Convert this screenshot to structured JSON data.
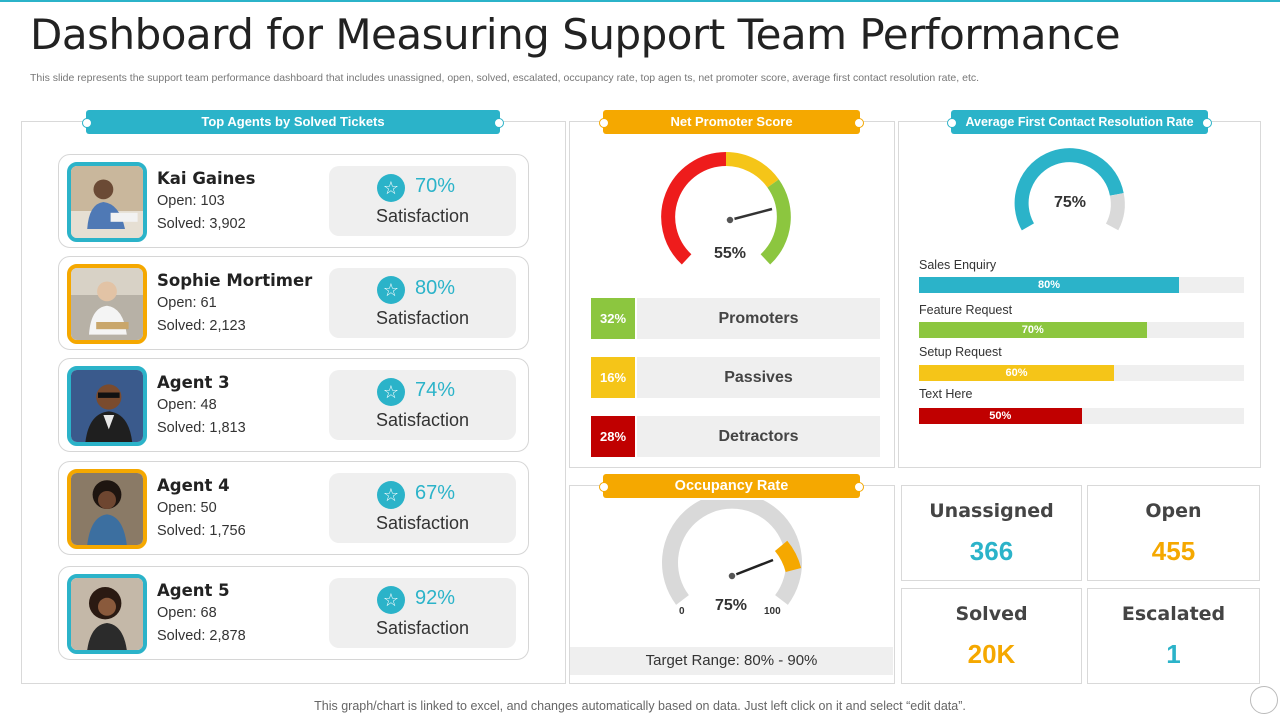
{
  "title": "Dashboard for Measuring Support Team Performance",
  "subtitle": "This slide represents the support team performance dashboard that includes unassigned, open, solved, escalated, occupancy rate, top agen ts, net promoter score, average first contact resolution rate, etc.",
  "top_agents": {
    "heading": "Top Agents by Solved Tickets",
    "agents": [
      {
        "name": "Kai Gaines",
        "open": "Open: 103",
        "solved": "Solved: 3,902",
        "pct": "70%",
        "label": "Satisfaction"
      },
      {
        "name": "Sophie Mortimer",
        "open": "Open: 61",
        "solved": "Solved: 2,123",
        "pct": "80%",
        "label": "Satisfaction"
      },
      {
        "name": "Agent 3",
        "open": "Open: 48",
        "solved": "Solved: 1,813",
        "pct": "74%",
        "label": "Satisfaction"
      },
      {
        "name": "Agent 4",
        "open": "Open: 50",
        "solved": "Solved: 1,756",
        "pct": "67%",
        "label": "Satisfaction"
      },
      {
        "name": "Agent 5",
        "open": "Open: 68",
        "solved": "Solved: 2,878",
        "pct": "92%",
        "label": "Satisfaction"
      }
    ]
  },
  "nps": {
    "heading": "Net Promoter Score",
    "gauge_value": "55%",
    "rows": [
      {
        "pct": "32%",
        "label": "Promoters",
        "color": "#8cc63f"
      },
      {
        "pct": "16%",
        "label": "Passives",
        "color": "#f5c518"
      },
      {
        "pct": "28%",
        "label": "Detractors",
        "color": "#c00000"
      }
    ]
  },
  "resolution": {
    "heading": "Average First Contact Resolution Rate",
    "gauge_value": "75%",
    "bars": [
      {
        "label": "Sales Enquiry",
        "pct": "80%",
        "value": 0.8,
        "color": "#2bb3c9"
      },
      {
        "label": "Feature Request",
        "pct": "70%",
        "value": 0.7,
        "color": "#8cc63f"
      },
      {
        "label": "Setup Request",
        "pct": "60%",
        "value": 0.6,
        "color": "#f5c518"
      },
      {
        "label": "Text Here",
        "pct": "50%",
        "value": 0.5,
        "color": "#c00000"
      }
    ]
  },
  "occupancy": {
    "heading": "Occupancy Rate",
    "gauge_value": "75%",
    "min": "0",
    "max": "100",
    "target": "Target Range: 80% - 90%"
  },
  "stats": {
    "unassigned": {
      "label": "Unassigned",
      "value": "366",
      "color": "#2bb3c9"
    },
    "open": {
      "label": "Open",
      "value": "455",
      "color": "#f5a800"
    },
    "solved": {
      "label": "Solved",
      "value": "20K",
      "color": "#f5a800"
    },
    "escalated": {
      "label": "Escalated",
      "value": "1",
      "color": "#2bb3c9"
    }
  },
  "footer": "This graph/chart is linked to excel, and changes automatically based on data. Just left click on it and select “edit data”."
}
